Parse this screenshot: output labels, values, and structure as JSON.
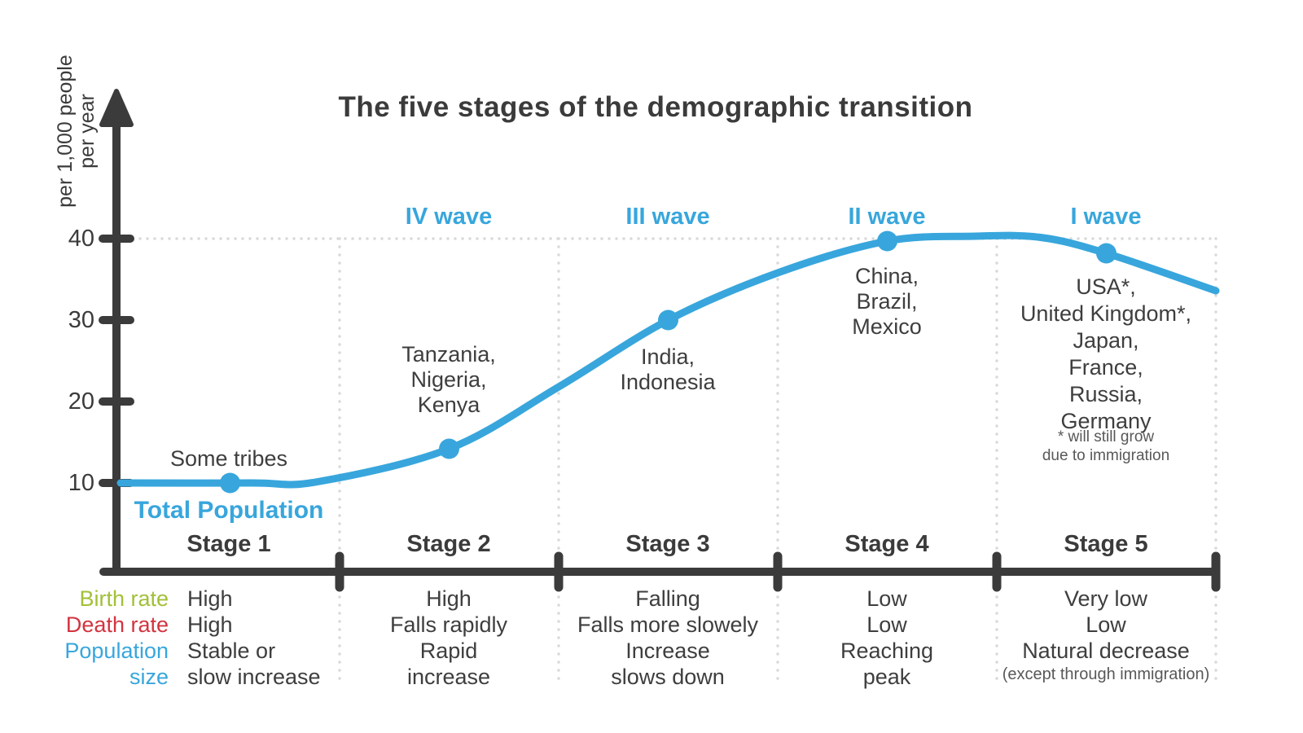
{
  "title": "The five stages of the demographic transition",
  "y_axis": {
    "unit_line1": "per 1,000 people",
    "unit_line2": "per year",
    "tick_labels": [
      "40",
      "30",
      "20",
      "10"
    ]
  },
  "annotations": {
    "some_tribes": "Some tribes",
    "total_population": "Total Population",
    "stage5_footnote": "* will still grow\ndue to immigration"
  },
  "row_labels": {
    "birth": "Birth rate",
    "death": "Death rate",
    "population": "Population\nsize"
  },
  "stages": [
    {
      "label": "Stage 1",
      "wave": "",
      "countries": "",
      "birth": "High",
      "death": "High",
      "population": "Stable or\nslow increase",
      "population_note": ""
    },
    {
      "label": "Stage 2",
      "wave": "IV wave",
      "countries": "Tanzania,\nNigeria,\nKenya",
      "birth": "High",
      "death": "Falls rapidly",
      "population": "Rapid\nincrease",
      "population_note": ""
    },
    {
      "label": "Stage 3",
      "wave": "III wave",
      "countries": "India,\nIndonesia",
      "birth": "Falling",
      "death": "Falls more slowely",
      "population": "Increase\nslows down",
      "population_note": ""
    },
    {
      "label": "Stage 4",
      "wave": "II wave",
      "countries": "China,\nBrazil,\nMexico",
      "birth": "Low",
      "death": "Low",
      "population": "Reaching\npeak",
      "population_note": ""
    },
    {
      "label": "Stage 5",
      "wave": "I wave",
      "countries": "USA*,\nUnited Kingdom*,\nJapan,\nFrance,\nRussia,\nGermany",
      "birth": "Very low",
      "death": "Low",
      "population": "Natural decrease",
      "population_note": "(except through immigration)"
    }
  ],
  "colors": {
    "curve_blue": "#38a6dc",
    "birth_green": "#a2c037",
    "death_red": "#d23440",
    "axis_dark": "#3b3b3b",
    "note_gray": "#585858",
    "grid_dotted": "#d9d9d9"
  },
  "chart_data": {
    "type": "line",
    "title": "The five stages of the demographic transition",
    "ylabel": "per 1,000 people per year",
    "yticks": [
      10,
      20,
      30,
      40
    ],
    "ylim": [
      0,
      45
    ],
    "x_unit": "stage position (0-5, each stage spans 1 unit)",
    "stage_labels": [
      "Stage 1",
      "Stage 2",
      "Stage 3",
      "Stage 4",
      "Stage 5"
    ],
    "stage_boundaries_u": [
      1,
      2,
      3,
      4,
      5
    ],
    "gridline_value": 40,
    "legend_position": "below stage 1 curve",
    "grid": "dotted stage separators and dotted line at 40",
    "series": [
      {
        "name": "Total Population",
        "points_u_v": [
          [
            0,
            10
          ],
          [
            0.6,
            10
          ],
          [
            0.9,
            10.15
          ],
          [
            1.5,
            14.2
          ],
          [
            2.0,
            21.8
          ],
          [
            2.5,
            30
          ],
          [
            3.0,
            35.8
          ],
          [
            3.5,
            39.7
          ],
          [
            3.9,
            40.3
          ],
          [
            4.2,
            40.15
          ],
          [
            4.5,
            38.2
          ],
          [
            5.0,
            33.6
          ]
        ],
        "markers_u_v": [
          [
            0.5,
            10
          ],
          [
            1.5,
            14.2
          ],
          [
            2.5,
            30
          ],
          [
            3.5,
            39.7
          ],
          [
            4.5,
            38.2
          ]
        ]
      }
    ],
    "stage_rates": [
      {
        "stage": "Stage 1",
        "wave": "",
        "examples": "Some tribes",
        "birth_rate": "High",
        "death_rate": "High",
        "population_size": "Stable or slow increase"
      },
      {
        "stage": "Stage 2",
        "wave": "IV wave",
        "examples": "Tanzania, Nigeria, Kenya",
        "birth_rate": "High",
        "death_rate": "Falls rapidly",
        "population_size": "Rapid increase"
      },
      {
        "stage": "Stage 3",
        "wave": "III wave",
        "examples": "India, Indonesia",
        "birth_rate": "Falling",
        "death_rate": "Falls more slowely",
        "population_size": "Increase slows down"
      },
      {
        "stage": "Stage 4",
        "wave": "II wave",
        "examples": "China, Brazil, Mexico",
        "birth_rate": "Low",
        "death_rate": "Low",
        "population_size": "Reaching peak"
      },
      {
        "stage": "Stage 5",
        "wave": "I wave",
        "examples": "USA*, United Kingdom*, Japan, France, Russia, Germany (* will still grow due to immigration)",
        "birth_rate": "Very low",
        "death_rate": "Low",
        "population_size": "Natural decrease (except through immigration)"
      }
    ]
  }
}
